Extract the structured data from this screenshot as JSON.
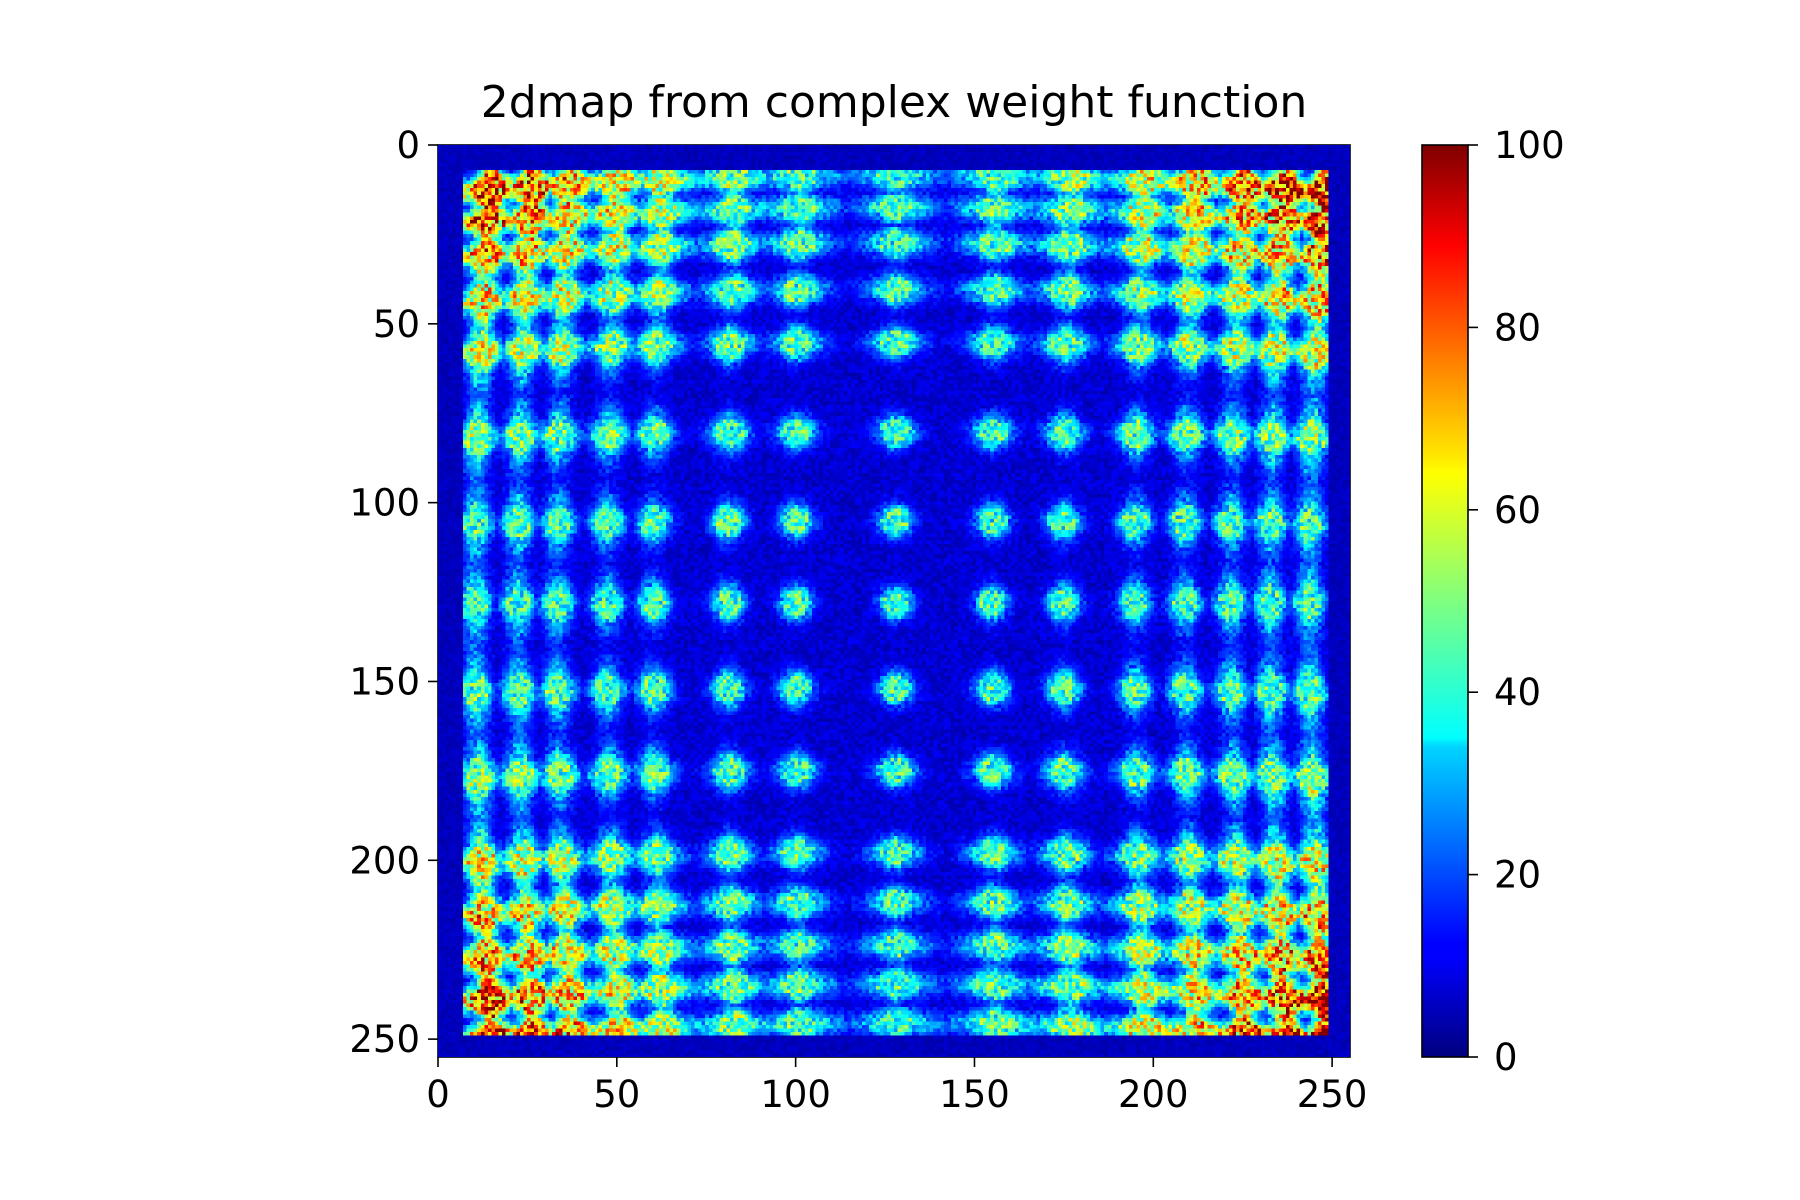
{
  "chart_data": {
    "type": "heatmap",
    "title": "2dmap from complex weight function",
    "xlabel": "",
    "ylabel": "",
    "x_ticks": [
      0,
      50,
      100,
      150,
      200,
      250
    ],
    "y_ticks": [
      0,
      50,
      100,
      150,
      200,
      250
    ],
    "xlim": [
      0,
      255
    ],
    "ylim": [
      255,
      0
    ],
    "colormap": "jet",
    "colorbar": {
      "min": 0,
      "max": 100,
      "ticks": [
        0,
        20,
        40,
        60,
        80,
        100
      ]
    },
    "grid": false,
    "grid_size": 256,
    "data_region": [
      7,
      249
    ],
    "peak_rows": [
      8,
      17,
      27,
      40,
      55,
      80,
      105,
      128,
      152,
      175,
      198,
      212,
      224,
      235,
      246
    ],
    "peak_cols": [
      10,
      22,
      33,
      47,
      60,
      81,
      100,
      128,
      155,
      175,
      195,
      209,
      222,
      233,
      244
    ],
    "corner_hotspot_value": 100,
    "center_spot_value": 35,
    "background_value": 8,
    "colors": {
      "frame": "#000000",
      "background": "#ffffff"
    }
  }
}
